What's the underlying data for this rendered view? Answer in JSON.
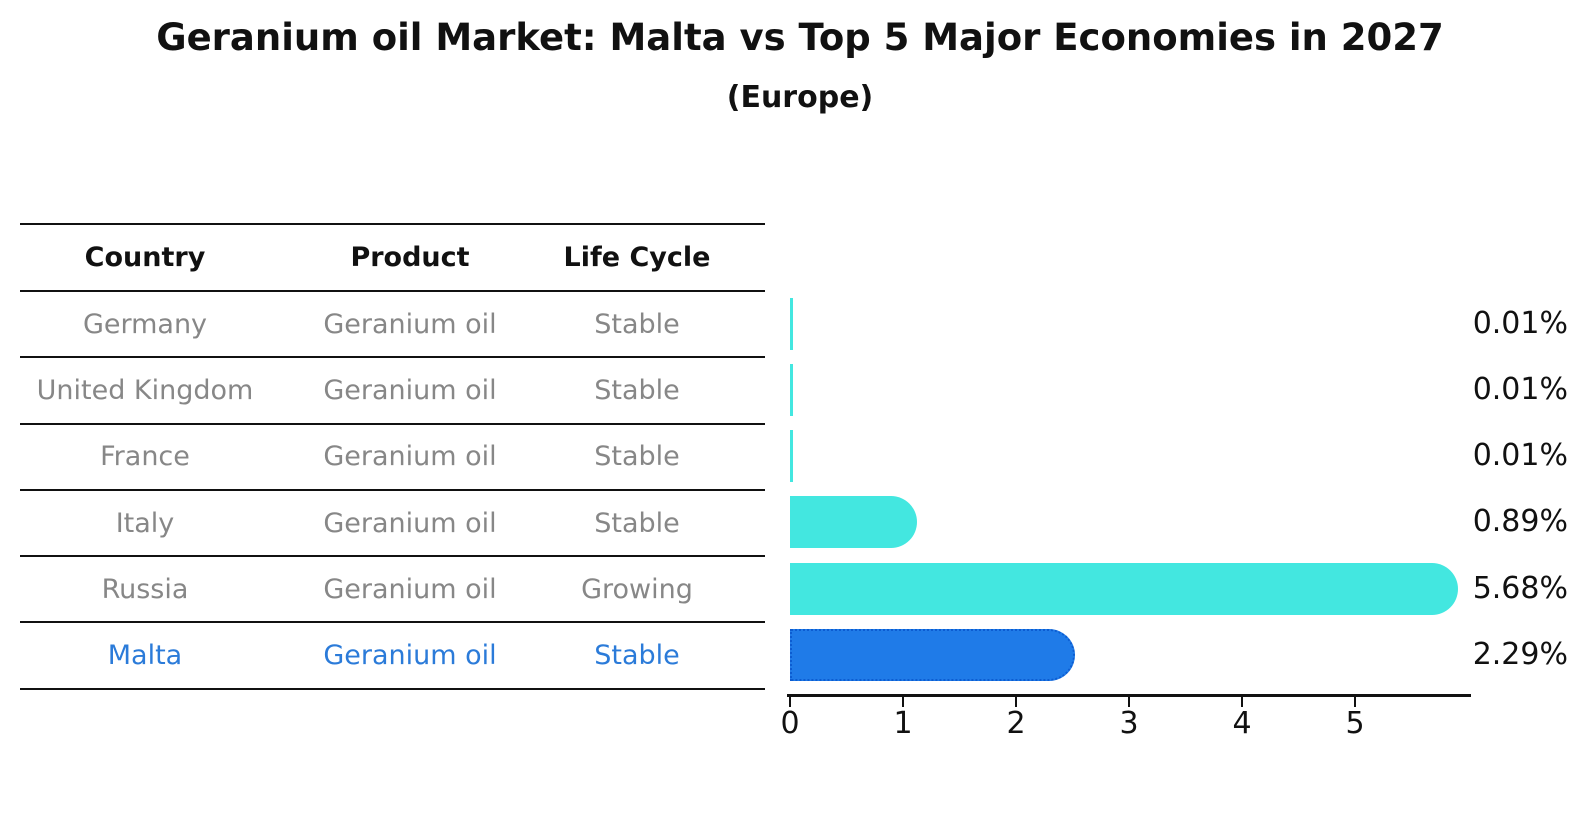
{
  "title": "Geranium oil Market: Malta vs Top 5 Major Economies in 2027",
  "subtitle": "(Europe)",
  "table": {
    "headers": {
      "country": "Country",
      "product": "Product",
      "life_cycle": "Life Cycle"
    },
    "rows": [
      {
        "country": "Germany",
        "product": "Geranium oil",
        "life_cycle": "Stable",
        "highlight": false
      },
      {
        "country": "United Kingdom",
        "product": "Geranium oil",
        "life_cycle": "Stable",
        "highlight": false
      },
      {
        "country": "France",
        "product": "Geranium oil",
        "life_cycle": "Stable",
        "highlight": false
      },
      {
        "country": "Italy",
        "product": "Geranium oil",
        "life_cycle": "Stable",
        "highlight": false
      },
      {
        "country": "Russia",
        "product": "Geranium oil",
        "life_cycle": "Growing",
        "highlight": false
      },
      {
        "country": "Malta",
        "product": "Geranium oil",
        "life_cycle": "Stable",
        "highlight": true
      }
    ]
  },
  "chart_data": {
    "type": "bar",
    "orientation": "horizontal",
    "categories": [
      "Germany",
      "United Kingdom",
      "France",
      "Italy",
      "Russia",
      "Malta"
    ],
    "values": [
      0.01,
      0.01,
      0.01,
      0.89,
      5.68,
      2.29
    ],
    "value_labels": [
      "0.01%",
      "0.01%",
      "0.01%",
      "0.89%",
      "5.68%",
      "2.29%"
    ],
    "highlight_index": 5,
    "x_ticks": [
      "0",
      "1",
      "2",
      "3",
      "4",
      "5"
    ],
    "xlim": [
      0,
      6
    ],
    "grid": false,
    "legend": "none",
    "colors": {
      "bar_default": "#43e7e0",
      "bar_highlight": "#1f7be8",
      "bar_highlight_border": "#0c5cd1",
      "highlight_text": "#2b7bd9",
      "table_text": "#878787",
      "axis_text": "#111111"
    }
  }
}
